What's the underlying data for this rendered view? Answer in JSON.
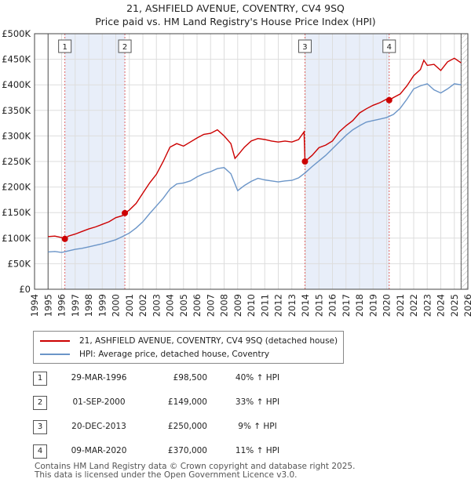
{
  "title": "21, ASHFIELD AVENUE, COVENTRY, CV4 9SQ",
  "subtitle": "Price paid vs. HM Land Registry's House Price Index (HPI)",
  "chart_data": {
    "type": "line",
    "xlim": [
      1994,
      2026
    ],
    "ylim": [
      0,
      500000
    ],
    "y_ticks": [
      0,
      50000,
      100000,
      150000,
      200000,
      250000,
      300000,
      350000,
      400000,
      450000,
      500000
    ],
    "y_tick_labels": [
      "£0",
      "£50K",
      "£100K",
      "£150K",
      "£200K",
      "£250K",
      "£300K",
      "£350K",
      "£400K",
      "£450K",
      "£500K"
    ],
    "x_ticks": [
      1994,
      1995,
      1996,
      1997,
      1998,
      1999,
      2000,
      2001,
      2002,
      2003,
      2004,
      2005,
      2006,
      2007,
      2008,
      2009,
      2010,
      2011,
      2012,
      2013,
      2014,
      2015,
      2016,
      2017,
      2018,
      2019,
      2020,
      2021,
      2022,
      2023,
      2024,
      2025,
      2026
    ],
    "x_tick_labels": [
      "1994",
      "1995",
      "1996",
      "1997",
      "1998",
      "1999",
      "2000",
      "2001",
      "2002",
      "2003",
      "2004",
      "2005",
      "2006",
      "2007",
      "2008",
      "2009",
      "2010",
      "2011",
      "2012",
      "2013",
      "2014",
      "2015",
      "2016",
      "2017",
      "2018",
      "2019",
      "2020",
      "2021",
      "2022",
      "2023",
      "2024",
      "2025",
      "2026"
    ],
    "grid": true,
    "data_start": 1995.0,
    "data_end": 2025.5,
    "shaded_periods": [
      [
        1996.24,
        2000.67
      ],
      [
        2013.97,
        2020.19
      ]
    ],
    "series": [
      {
        "name": "21, ASHFIELD AVENUE, COVENTRY, CV4 9SQ (detached house)",
        "color": "#cc0000",
        "x": [
          1995.0,
          1995.5,
          1996.0,
          1996.24,
          1996.5,
          1997.0,
          1997.5,
          1998.0,
          1998.5,
          1999.0,
          1999.5,
          2000.0,
          2000.5,
          2000.67,
          2001.0,
          2001.5,
          2002.0,
          2002.5,
          2003.0,
          2003.5,
          2004.0,
          2004.5,
          2005.0,
          2005.5,
          2006.0,
          2006.5,
          2007.0,
          2007.5,
          2008.0,
          2008.5,
          2008.8,
          2009.0,
          2009.5,
          2010.0,
          2010.5,
          2011.0,
          2011.5,
          2012.0,
          2012.5,
          2013.0,
          2013.5,
          2013.9,
          2013.97,
          2014.5,
          2015.0,
          2015.5,
          2016.0,
          2016.5,
          2017.0,
          2017.5,
          2018.0,
          2018.5,
          2019.0,
          2019.5,
          2020.0,
          2020.19,
          2020.5,
          2021.0,
          2021.5,
          2022.0,
          2022.5,
          2022.75,
          2023.0,
          2023.5,
          2024.0,
          2024.5,
          2025.0,
          2025.5
        ],
        "values": [
          103000,
          104000,
          101000,
          98500,
          104000,
          108000,
          113000,
          118000,
          122000,
          127000,
          132000,
          140000,
          144000,
          149000,
          155000,
          168000,
          188000,
          208000,
          225000,
          250000,
          278000,
          285000,
          280000,
          288000,
          296000,
          303000,
          305000,
          312000,
          300000,
          285000,
          256000,
          262000,
          278000,
          290000,
          295000,
          293000,
          290000,
          288000,
          290000,
          288000,
          293000,
          308000,
          250000,
          262000,
          277000,
          282000,
          290000,
          308000,
          320000,
          330000,
          345000,
          353000,
          360000,
          365000,
          372000,
          370000,
          375000,
          382000,
          398000,
          418000,
          430000,
          448000,
          438000,
          440000,
          428000,
          445000,
          452000,
          443000
        ]
      },
      {
        "name": "HPI: Average price, detached house, Coventry",
        "color": "#6b95c8",
        "x": [
          1995.0,
          1995.5,
          1996.0,
          1996.5,
          1997.0,
          1997.5,
          1998.0,
          1998.5,
          1999.0,
          1999.5,
          2000.0,
          2000.5,
          2001.0,
          2001.5,
          2002.0,
          2002.5,
          2003.0,
          2003.5,
          2004.0,
          2004.5,
          2005.0,
          2005.5,
          2006.0,
          2006.5,
          2007.0,
          2007.5,
          2008.0,
          2008.5,
          2009.0,
          2009.5,
          2010.0,
          2010.5,
          2011.0,
          2011.5,
          2012.0,
          2012.5,
          2013.0,
          2013.5,
          2014.0,
          2014.5,
          2015.0,
          2015.5,
          2016.0,
          2016.5,
          2017.0,
          2017.5,
          2018.0,
          2018.5,
          2019.0,
          2019.5,
          2020.0,
          2020.5,
          2021.0,
          2021.5,
          2022.0,
          2022.5,
          2023.0,
          2023.5,
          2024.0,
          2024.5,
          2025.0,
          2025.5
        ],
        "values": [
          73000,
          74000,
          72000,
          75000,
          78000,
          80000,
          83000,
          86000,
          89000,
          93000,
          97000,
          103000,
          110000,
          120000,
          132000,
          148000,
          163000,
          178000,
          196000,
          206000,
          208000,
          212000,
          220000,
          226000,
          230000,
          236000,
          238000,
          226000,
          193000,
          203000,
          211000,
          217000,
          214000,
          212000,
          210000,
          212000,
          213000,
          218000,
          228000,
          240000,
          251000,
          262000,
          275000,
          288000,
          301000,
          312000,
          320000,
          327000,
          330000,
          333000,
          336000,
          342000,
          354000,
          372000,
          392000,
          398000,
          402000,
          390000,
          384000,
          392000,
          402000,
          400000
        ]
      }
    ],
    "sales": [
      {
        "label": "1",
        "x": 1996.24,
        "value": 98500
      },
      {
        "label": "2",
        "x": 2000.67,
        "value": 149000
      },
      {
        "label": "3",
        "x": 2013.97,
        "value": 250000
      },
      {
        "label": "4",
        "x": 2020.19,
        "value": 370000
      }
    ]
  },
  "legend": {
    "items": [
      {
        "label": "21, ASHFIELD AVENUE, COVENTRY, CV4 9SQ (detached house)",
        "color": "#cc0000"
      },
      {
        "label": "HPI: Average price, detached house, Coventry",
        "color": "#6b95c8"
      }
    ]
  },
  "sales_table": [
    {
      "num": "1",
      "date": "29-MAR-1996",
      "price": "£98,500",
      "hpi": "40% ↑ HPI"
    },
    {
      "num": "2",
      "date": "01-SEP-2000",
      "price": "£149,000",
      "hpi": "33% ↑ HPI"
    },
    {
      "num": "3",
      "date": "20-DEC-2013",
      "price": "£250,000",
      "hpi": "9% ↑ HPI"
    },
    {
      "num": "4",
      "date": "09-MAR-2020",
      "price": "£370,000",
      "hpi": "11% ↑ HPI"
    }
  ],
  "footer": {
    "line1": "Contains HM Land Registry data © Crown copyright and database right 2025.",
    "line2": "This data is licensed under the Open Government Licence v3.0."
  }
}
